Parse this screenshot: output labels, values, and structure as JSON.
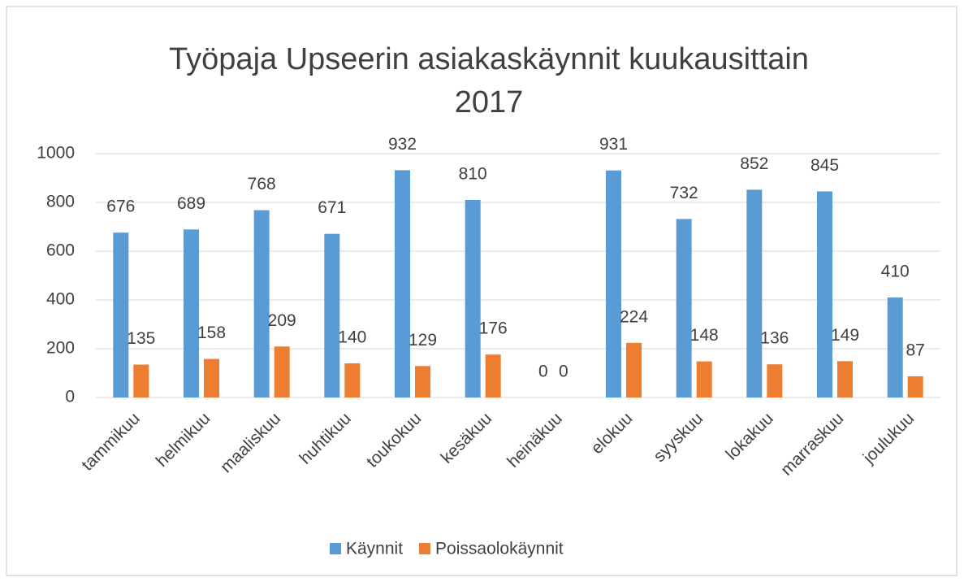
{
  "chart_data": {
    "type": "bar",
    "title": [
      "Työpaja Upseerin asiakaskäynnit kuukausittain",
      "2017"
    ],
    "categories": [
      "tammikuu",
      "helmikuu",
      "maaliskuu",
      "huhtikuu",
      "toukokuu",
      "kesäkuu",
      "heinäkuu",
      "elokuu",
      "syyskuu",
      "lokakuu",
      "marraskuu",
      "joulukuu"
    ],
    "series": [
      {
        "name": "Käynnit",
        "color": "#5b9bd5",
        "values": [
          676,
          689,
          768,
          671,
          932,
          810,
          0,
          931,
          732,
          852,
          845,
          410
        ]
      },
      {
        "name": "Poissaolokäynnit",
        "color": "#ed7d31",
        "values": [
          135,
          158,
          209,
          140,
          129,
          176,
          0,
          224,
          148,
          136,
          149,
          87
        ]
      }
    ],
    "ylim": [
      0,
      1000
    ],
    "yticks": [
      0,
      200,
      400,
      600,
      800,
      1000
    ],
    "grid": true,
    "legend": "bottom"
  }
}
